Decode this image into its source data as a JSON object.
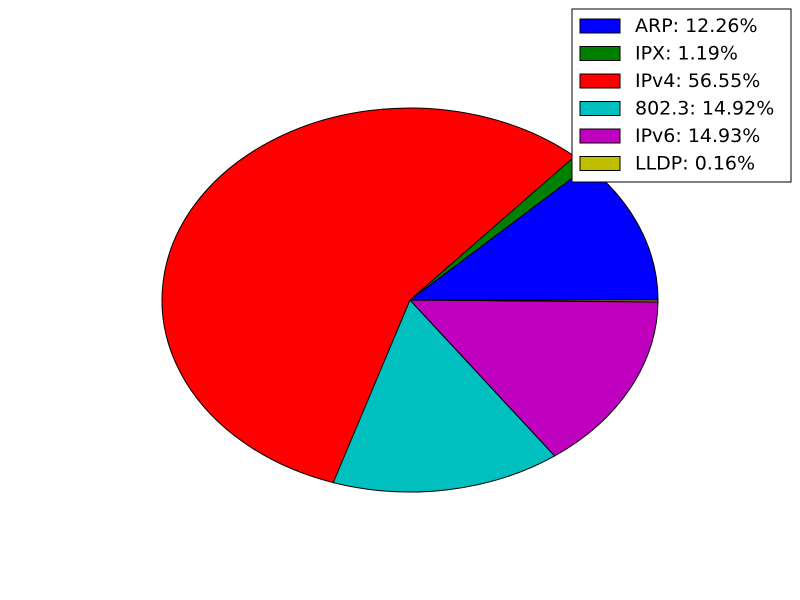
{
  "chart_data": {
    "type": "pie",
    "title": "",
    "start_angle_deg": 0,
    "direction": "counterclockwise",
    "legend_position": "top-right",
    "slices": [
      {
        "label": "ARP: 12.26%",
        "value": 12.26,
        "color": "#0000ff"
      },
      {
        "label": "IPX: 1.19%",
        "value": 1.19,
        "color": "#008000"
      },
      {
        "label": "IPv4: 56.55%",
        "value": 56.55,
        "color": "#ff0000"
      },
      {
        "label": "802.3: 14.92%",
        "value": 14.92,
        "color": "#00bfbf"
      },
      {
        "label": "IPv6: 14.93%",
        "value": 14.93,
        "color": "#bf00bf"
      },
      {
        "label": "LLDP: 0.16%",
        "value": 0.16,
        "color": "#bfbf00"
      }
    ]
  }
}
